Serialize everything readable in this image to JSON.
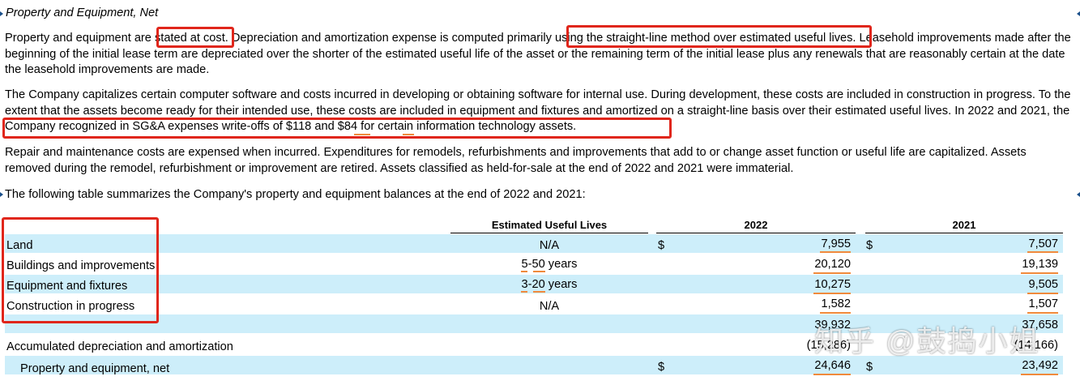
{
  "section_title": "Property and Equipment, Net",
  "paragraphs": {
    "p1": "Property and equipment are stated at cost. Depreciation and amortization expense is computed primarily using the straight-line method over estimated useful lives. Leasehold improvements made after the beginning of the initial lease term are depreciated over the shorter of the estimated useful life of the asset or the remaining term of the initial lease plus any renewals that are reasonably certain at the date the leasehold improvements are made.",
    "p2": "The Company capitalizes certain computer software and costs incurred in developing or obtaining software for internal use. During development, these costs are included in construction in progress. To the extent that the assets become ready for their intended use, these costs are included in equipment and fixtures and amortized on a straight-line basis over their estimated useful lives. In 2022 and 2021, the Company recognized in SG&A expenses write-offs of $118 and $84 for certain information technology assets.",
    "p3": "Repair and maintenance costs are expensed when incurred. Expenditures for remodels, refurbishments and improvements that add to or change asset function or useful life are capitalized. Assets removed during the remodel, refurbishment or improvement are retired. Assets classified as held-for-sale at the end of 2022 and 2021 were immaterial.",
    "p4": "The following table summarizes the Company's property and equipment balances at the end of 2022 and 2021:"
  },
  "table": {
    "headers": {
      "lives": "Estimated Useful Lives",
      "y2022": "2022",
      "y2021": "2021"
    },
    "currency": "$",
    "rows": [
      {
        "label": "Land",
        "lives": "N/A",
        "v2022": "7,955",
        "v2021": "7,507"
      },
      {
        "label": "Buildings and improvements",
        "lives": "5-50 years",
        "v2022": "20,120",
        "v2021": "19,139"
      },
      {
        "label": "Equipment and fixtures",
        "lives": "3-20 years",
        "v2022": "10,275",
        "v2021": "9,505"
      },
      {
        "label": "Construction in progress",
        "lives": "N/A",
        "v2022": "1,582",
        "v2021": "1,507"
      }
    ],
    "subtotal": {
      "v2022": "39,932",
      "v2021": "37,658"
    },
    "accumulated": {
      "label": "Accumulated depreciation and amortization",
      "v2022": "(15,286)",
      "v2021": "(14,166)"
    },
    "net": {
      "label": "Property and equipment, net",
      "v2022": "24,646",
      "v2021": "23,492"
    }
  },
  "watermark": "知乎 @鼓捣小姐",
  "colors": {
    "highlight": "#e0261b",
    "row_band": "#cdeefa",
    "underline": "#f08a3c"
  }
}
